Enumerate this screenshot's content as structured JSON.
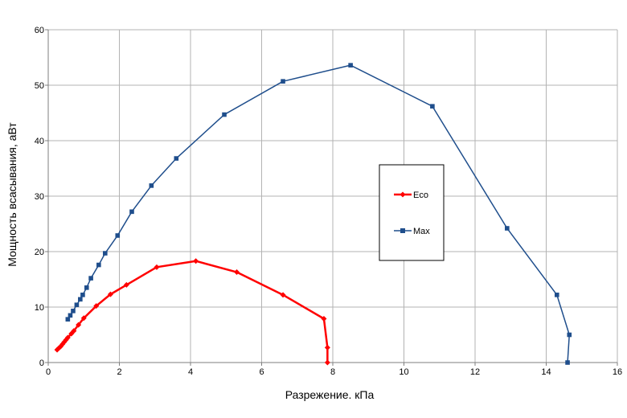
{
  "chart_data": {
    "type": "line",
    "xlabel": "Разрежение. кПа",
    "ylabel": "Мощность всасывания, аВт",
    "xlim": [
      0,
      16
    ],
    "ylim": [
      0,
      60
    ],
    "x_ticks": [
      "0",
      "2",
      "4",
      "6",
      "8",
      "10",
      "12",
      "14",
      "16"
    ],
    "y_ticks": [
      "0",
      "10",
      "20",
      "30",
      "40",
      "50",
      "60"
    ],
    "grid": true,
    "legend_position": "center-right",
    "series": [
      {
        "name": "Eco",
        "color": "#ff0000",
        "marker": "diamond",
        "points": [
          [
            0.25,
            2.3
          ],
          [
            0.3,
            2.6
          ],
          [
            0.35,
            2.9
          ],
          [
            0.4,
            3.3
          ],
          [
            0.45,
            3.7
          ],
          [
            0.5,
            4.1
          ],
          [
            0.55,
            4.5
          ],
          [
            0.65,
            5.2
          ],
          [
            0.72,
            5.7
          ],
          [
            0.85,
            6.8
          ],
          [
            1.0,
            8.0
          ],
          [
            1.35,
            10.2
          ],
          [
            1.75,
            12.3
          ],
          [
            2.2,
            14.0
          ],
          [
            3.05,
            17.2
          ],
          [
            4.15,
            18.3
          ],
          [
            5.3,
            16.3
          ],
          [
            6.6,
            12.2
          ],
          [
            7.75,
            7.9
          ],
          [
            7.85,
            2.7
          ],
          [
            7.85,
            0.0
          ]
        ]
      },
      {
        "name": "Max",
        "color": "#1f4e8c",
        "marker": "square",
        "points": [
          [
            0.55,
            7.8
          ],
          [
            0.62,
            8.5
          ],
          [
            0.7,
            9.3
          ],
          [
            0.8,
            10.4
          ],
          [
            0.9,
            11.4
          ],
          [
            0.97,
            12.2
          ],
          [
            1.08,
            13.5
          ],
          [
            1.2,
            15.2
          ],
          [
            1.42,
            17.6
          ],
          [
            1.6,
            19.7
          ],
          [
            1.95,
            22.9
          ],
          [
            2.35,
            27.2
          ],
          [
            2.9,
            31.9
          ],
          [
            3.6,
            36.8
          ],
          [
            4.95,
            44.7
          ],
          [
            6.6,
            50.7
          ],
          [
            8.5,
            53.6
          ],
          [
            10.8,
            46.2
          ],
          [
            12.9,
            24.2
          ],
          [
            14.3,
            12.2
          ],
          [
            14.65,
            5.0
          ],
          [
            14.6,
            0.0
          ]
        ]
      }
    ]
  },
  "colors": {
    "eco": "#ff0000",
    "max": "#1f4e8c",
    "grid": "#b3b3b3",
    "axis": "#7f7f7f"
  }
}
